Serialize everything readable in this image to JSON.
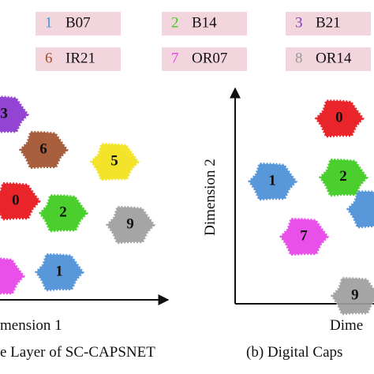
{
  "chart_data": [
    {
      "type": "scatter",
      "legend": [
        {
          "number": "1",
          "name": "B07",
          "color": "#4a8fd6"
        },
        {
          "number": "2",
          "name": "B14",
          "color": "#3ccc1e"
        },
        {
          "number": "3",
          "name": "B21",
          "color": "#8a35cf"
        },
        {
          "number": "6",
          "name": "IR21",
          "color": "#a0522d"
        },
        {
          "number": "7",
          "name": "OR07",
          "color": "#e842e8"
        },
        {
          "number": "8",
          "name": "OR14",
          "color": "#999999"
        }
      ],
      "x_label": "mension 1",
      "caption": "e Layer of SC-CAPSNET",
      "xlim": [
        0,
        100
      ],
      "ylim": [
        0,
        100
      ],
      "series": [
        {
          "name": "3",
          "color": "#8a35cf",
          "x": [
            6.7
          ],
          "values": [
            87
          ]
        },
        {
          "name": "6",
          "color": "#a0522d",
          "x": [
            28.9
          ],
          "values": [
            70.4
          ]
        },
        {
          "name": "5",
          "color": "#f2e21a",
          "x": [
            68.9
          ],
          "values": [
            64.8
          ]
        },
        {
          "name": "0",
          "color": "#e8131a",
          "x": [
            13.3
          ],
          "values": [
            46.3
          ]
        },
        {
          "name": "2",
          "color": "#3ccc1e",
          "x": [
            40
          ],
          "values": [
            40.7
          ]
        },
        {
          "name": "9",
          "color": "#9e9e9e",
          "x": [
            77.8
          ],
          "values": [
            35.2
          ]
        },
        {
          "name": "1",
          "color": "#4a8fd6",
          "x": [
            37.8
          ],
          "values": [
            13
          ]
        },
        {
          "name": null,
          "color": "#e842e8",
          "x": [
            4.4
          ],
          "values": [
            11.1
          ]
        }
      ]
    },
    {
      "type": "scatter",
      "x_label": "Dime",
      "y_label": "Dimension 2",
      "caption": "(b)  Digital Caps",
      "xlim": [
        0,
        100
      ],
      "ylim": [
        0,
        100
      ],
      "series": [
        {
          "name": "0",
          "color": "#e8131a",
          "x": [
            65.3
          ],
          "values": [
            87
          ]
        },
        {
          "name": "1",
          "color": "#4a8fd6",
          "x": [
            23.3
          ],
          "values": [
            57.4
          ]
        },
        {
          "name": "2",
          "color": "#3ccc1e",
          "x": [
            67.8
          ],
          "values": [
            59.3
          ]
        },
        {
          "name": "7",
          "color": "#e842e8",
          "x": [
            43.1
          ],
          "values": [
            31.5
          ]
        },
        {
          "name": "9",
          "color": "#9e9e9e",
          "x": [
            75.2
          ],
          "values": [
            3.7
          ]
        },
        {
          "name": null,
          "color": "#4a8fd6",
          "x": [
            85.1
          ],
          "values": [
            44.4
          ]
        }
      ]
    }
  ]
}
